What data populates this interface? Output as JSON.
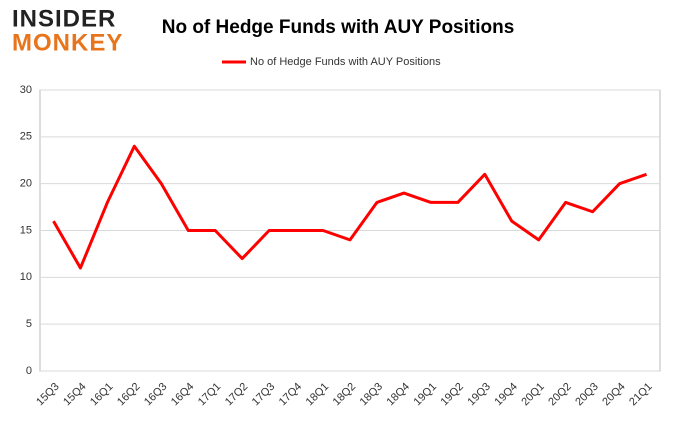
{
  "logo": {
    "line1": "INSIDER",
    "line2": "MONKEY"
  },
  "chart_data": {
    "type": "line",
    "title": "No of Hedge Funds with AUY Positions",
    "categories": [
      "15Q3",
      "15Q4",
      "16Q1",
      "16Q2",
      "16Q3",
      "16Q4",
      "17Q1",
      "17Q2",
      "17Q3",
      "17Q4",
      "18Q1",
      "18Q2",
      "18Q3",
      "18Q4",
      "19Q1",
      "19Q2",
      "19Q3",
      "19Q4",
      "20Q1",
      "20Q2",
      "20Q3",
      "20Q4",
      "21Q1"
    ],
    "series": [
      {
        "name": "No of Hedge Funds with AUY Positions",
        "color": "#ff0000",
        "values": [
          16,
          11,
          18,
          24,
          20,
          15,
          15,
          12,
          15,
          15,
          15,
          14,
          18,
          19,
          18,
          18,
          21,
          16,
          14,
          18,
          17,
          20,
          21
        ]
      }
    ],
    "ylim": [
      0,
      30
    ],
    "yticks": [
      0,
      5,
      10,
      15,
      20,
      25,
      30
    ],
    "grid": true,
    "legend": "top"
  }
}
